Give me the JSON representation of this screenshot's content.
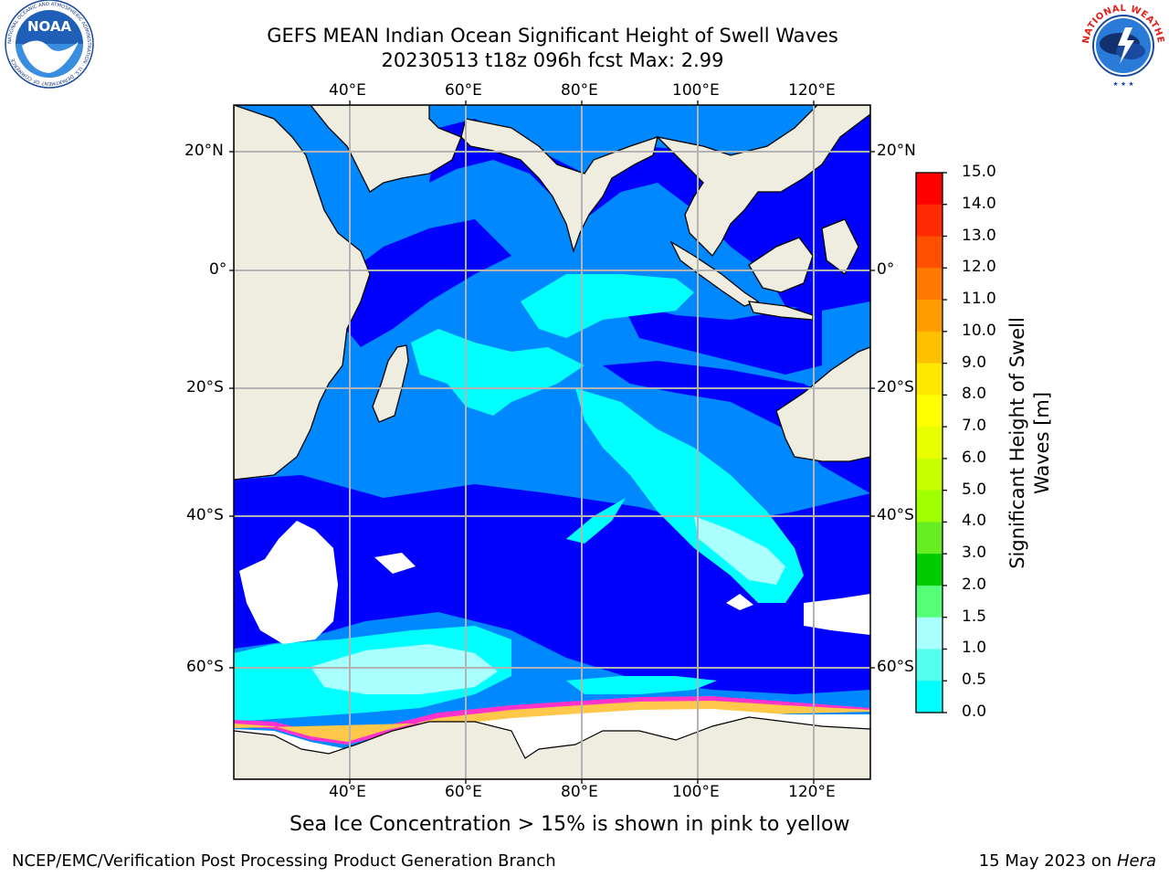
{
  "header": {
    "title_line1": "GEFS MEAN Indian Ocean Significant Height of Swell Waves",
    "title_line2": "20230513 t18z 096h fcst   Max: 2.99"
  },
  "logos": {
    "left": "NOAA",
    "left_ring_text": "NATIONAL OCEANIC AND ATMOSPHERIC ADMINISTRATION · U.S. DEPARTMENT OF COMMERCE",
    "right_ring_text": "NATIONAL WEATHER SERVICE"
  },
  "map": {
    "lon_labels_top": [
      "40°E",
      "60°E",
      "80°E",
      "100°E",
      "120°E"
    ],
    "lon_labels_bottom": [
      "40°E",
      "60°E",
      "80°E",
      "100°E",
      "120°E"
    ],
    "lat_labels_left": [
      "20°N",
      "0°",
      "20°S",
      "40°S",
      "60°S"
    ],
    "lat_labels_right": [
      "20°N",
      "0°",
      "20°S",
      "40°S",
      "60°S"
    ],
    "colors": {
      "land": "#efeddf",
      "ice_mask": "#ffffff",
      "grid": "#b4b4b4",
      "coast": "#000000"
    }
  },
  "colorbar": {
    "title_line1": "Significant Height of Swell",
    "title_line2": "Waves [m]",
    "ticks": [
      "15.0",
      "14.0",
      "13.0",
      "12.0",
      "11.0",
      "10.0",
      "9.0",
      "8.0",
      "7.0",
      "6.0",
      "5.0",
      "4.0",
      "3.0",
      "2.0",
      "1.5",
      "1.0",
      "0.5",
      "0.0"
    ],
    "colors_top_to_bottom": [
      "#ff0000",
      "#ff2a00",
      "#ff5000",
      "#ff7a00",
      "#ff9c00",
      "#ffc000",
      "#ffe800",
      "#ffff00",
      "#e8ff00",
      "#c8ff00",
      "#a0ff00",
      "#66ee22",
      "#00cc00",
      "#55ff77",
      "#aaffff",
      "#55ffee",
      "#00ffff",
      "#0088ff",
      "#0000ff"
    ]
  },
  "caption": "Sea Ice Concentration > 15% is shown in pink to yellow",
  "footer": {
    "left": "NCEP/EMC/Verification Post Processing Product Generation Branch",
    "right_date": "15 May 2023 on ",
    "right_machine": "Hera"
  }
}
